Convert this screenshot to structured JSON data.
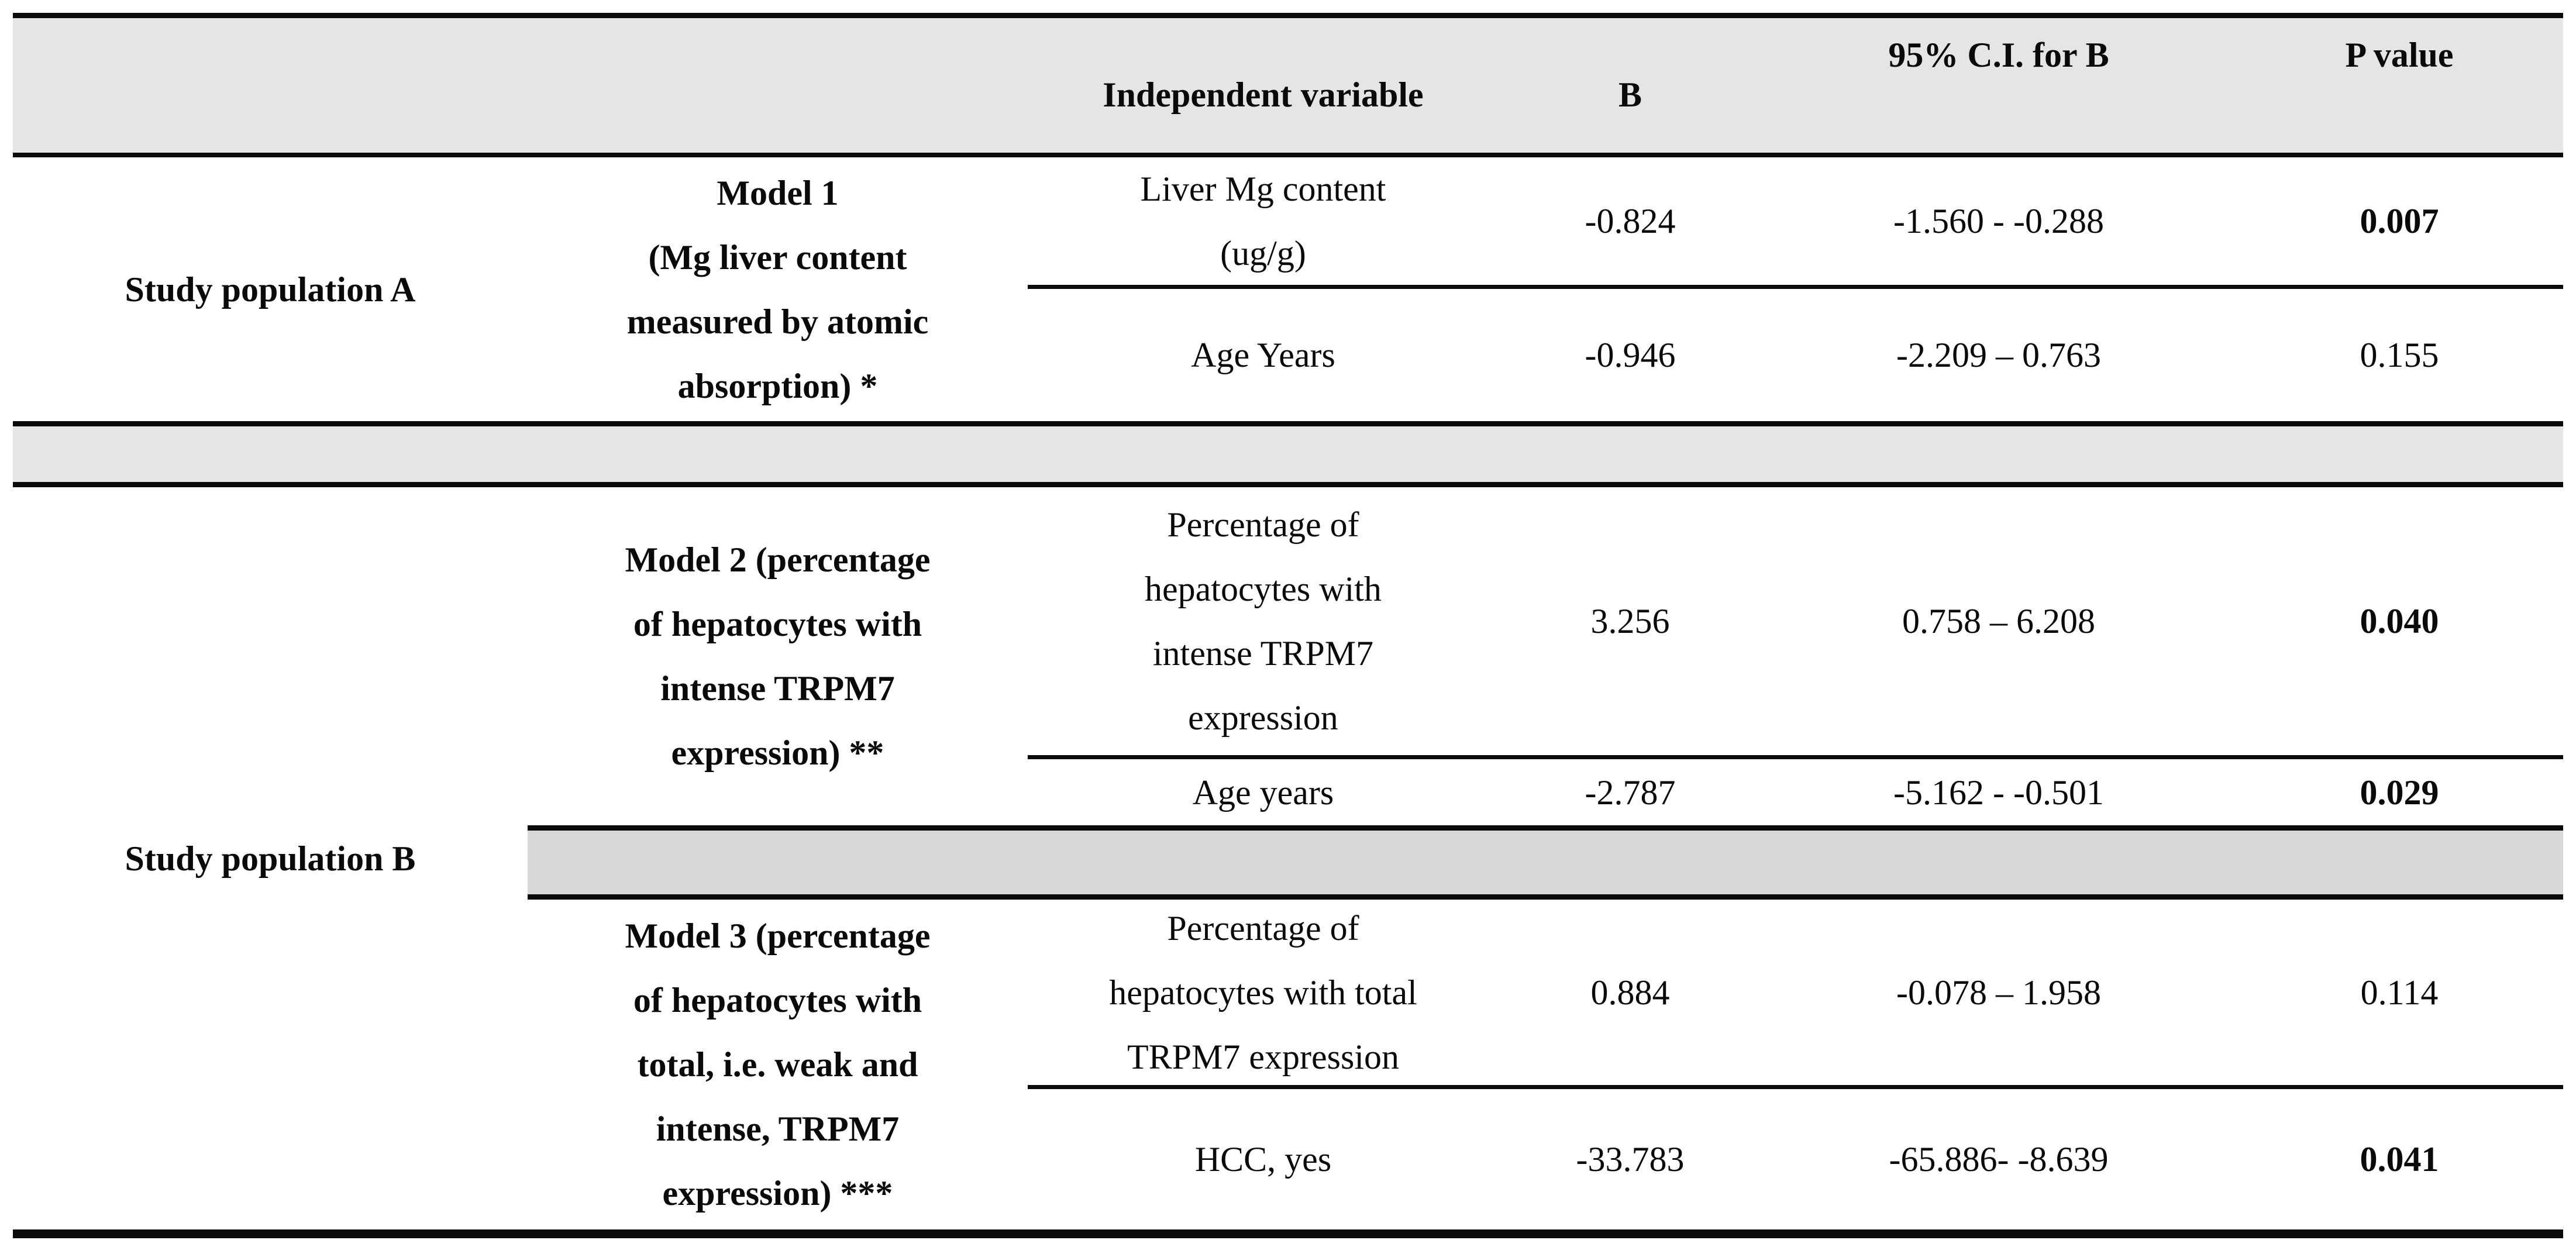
{
  "header": {
    "independent_variable": "Independent variable",
    "b": "B",
    "ci": "95% C.I. for B",
    "p_value": "P value"
  },
  "populations": {
    "a": "Study population A",
    "b": "Study population B"
  },
  "models": {
    "model1": "Model 1\n(Mg liver content\nmeasured by atomic\nabsorption) *",
    "model2": "Model 2 (percentage\nof hepatocytes with\nintense TRPM7\nexpression) **",
    "model3": "Model 3 (percentage\nof hepatocytes with\ntotal, i.e. weak and\nintense, TRPM7\nexpression) ***"
  },
  "rows": [
    {
      "variable": "Liver Mg content\n(ug/g)",
      "b": "-0.824",
      "ci_95": "-1.560 - -0.288",
      "p": "0.007",
      "p_significant_bold": true
    },
    {
      "variable": "Age Years",
      "b": "-0.946",
      "ci_95": "-2.209 – 0.763",
      "p": "0.155",
      "p_significant_bold": false
    },
    {
      "variable": "Percentage of\nhepatocytes with\nintense TRPM7\nexpression",
      "b": "3.256",
      "ci_95": "0.758 – 6.208",
      "p": "0.040",
      "p_significant_bold": true
    },
    {
      "variable": "Age years",
      "b": "-2.787",
      "ci_95": "-5.162 - -0.501",
      "p": "0.029",
      "p_significant_bold": true
    },
    {
      "variable": "Percentage of\nhepatocytes with total\nTRPM7 expression",
      "b": "0.884",
      "ci_95": "-0.078 – 1.958",
      "p": "0.114",
      "p_significant_bold": false
    },
    {
      "variable": "HCC, yes",
      "b": "-33.783",
      "ci_95": "-65.886- -8.639",
      "p": "0.041",
      "p_significant_bold": true
    }
  ],
  "colors": {
    "header_band": "#e5e5e5",
    "separator_band_full_width": "#e5e5e5",
    "separator_band_partial": "#d8d8d8",
    "rule_line": "#0a0a0a"
  }
}
